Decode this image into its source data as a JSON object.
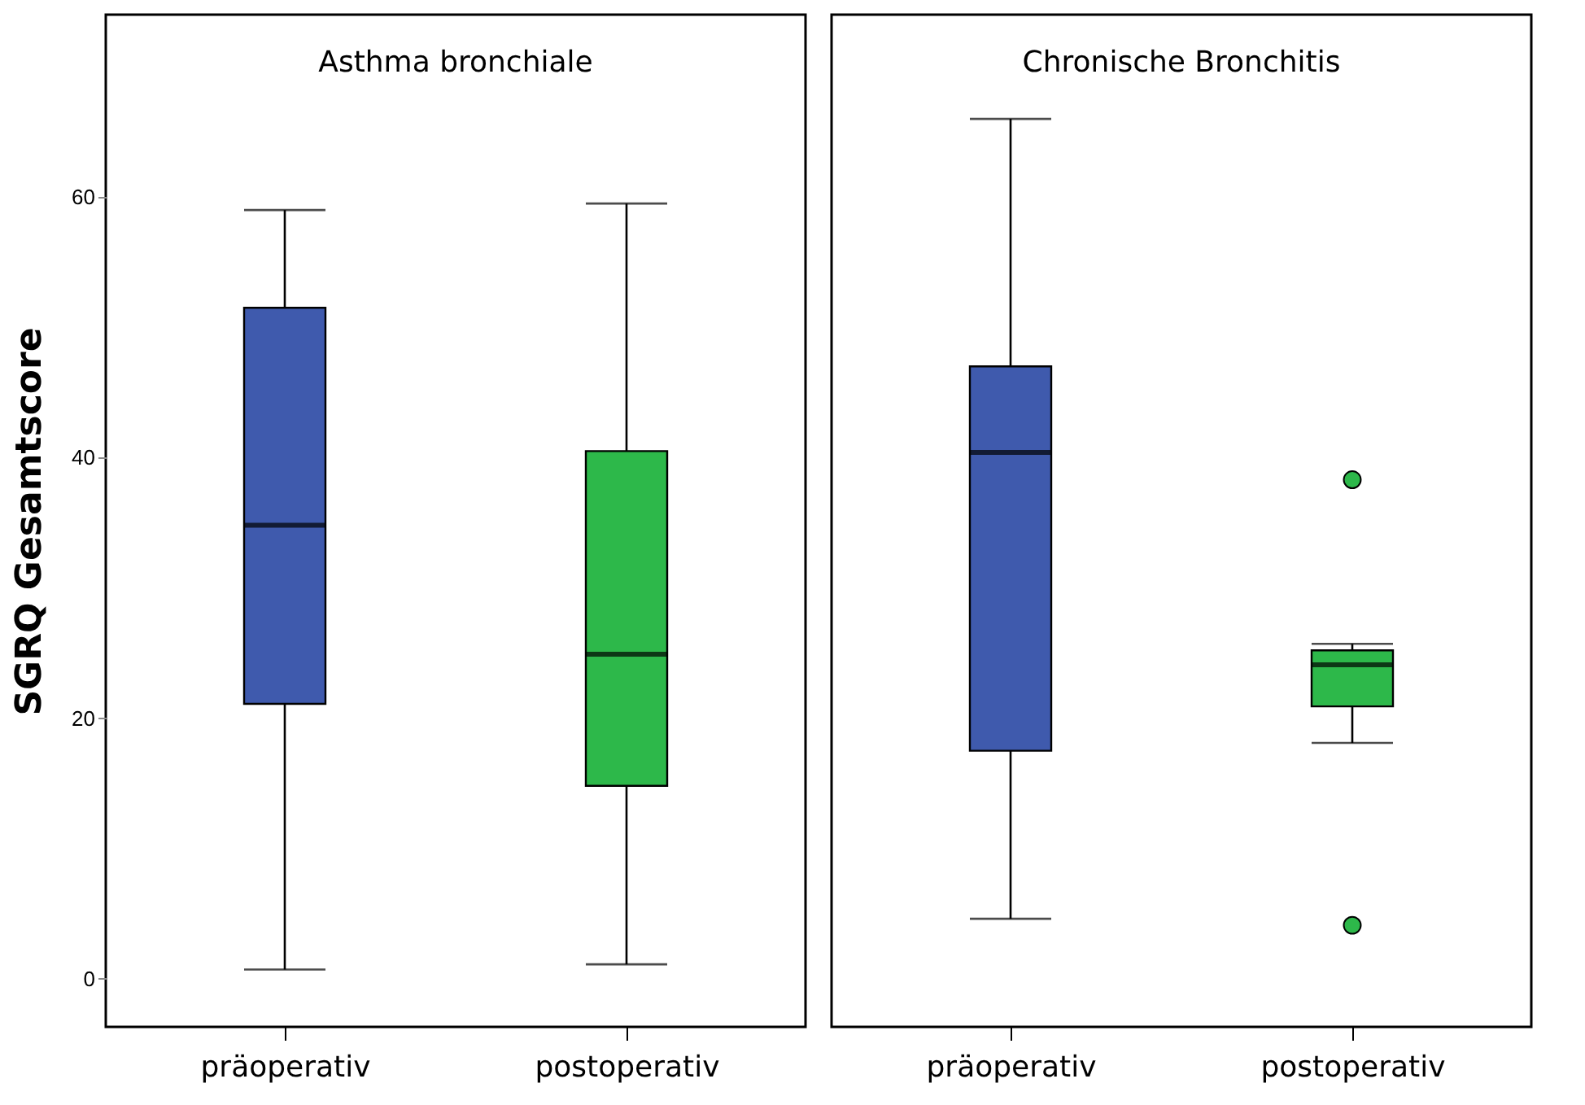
{
  "chart_data": [
    {
      "type": "box",
      "title": "Asthma bronchiale",
      "ylabel": "SGRQ Gesamtscore",
      "categories": [
        "präoperativ",
        "postoperativ"
      ],
      "colors": [
        "#3f5aad",
        "#2db84a"
      ],
      "ylim": [
        -3.7,
        74
      ],
      "yticks": [
        0,
        20,
        40,
        60
      ],
      "grid": false,
      "boxes": [
        {
          "low": 0.7,
          "q1": 21.1,
          "median": 34.8,
          "q3": 51.5,
          "high": 59
        },
        {
          "low": 1.1,
          "q1": 14.8,
          "median": 24.9,
          "q3": 40.5,
          "high": 59.5
        }
      ]
    },
    {
      "type": "box",
      "title": "Chronische Bronchitis",
      "categories": [
        "präoperativ",
        "postoperativ"
      ],
      "colors": [
        "#3f5aad",
        "#2db84a"
      ],
      "ylim": [
        -3.7,
        74
      ],
      "yticks": [
        0,
        20,
        40,
        60
      ],
      "grid": false,
      "tick_labels": "x",
      "boxes": [
        {
          "low": 4.6,
          "q1": 17.5,
          "median": 40.4,
          "q3": 47,
          "high": 66
        },
        {
          "low": 18.1,
          "q1": 20.9,
          "median": 24.1,
          "q3": 25.2,
          "high": 25.7,
          "outliers": [
            38.3,
            4.1
          ]
        }
      ]
    }
  ]
}
